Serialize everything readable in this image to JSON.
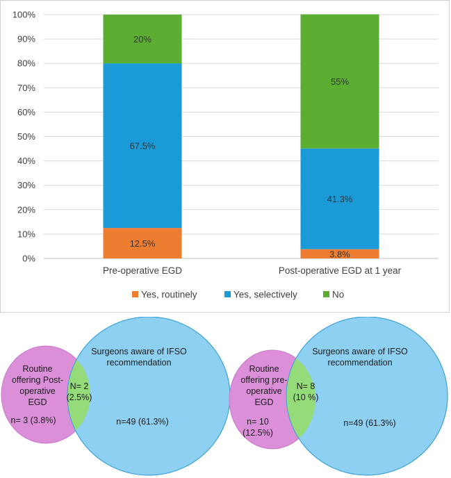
{
  "chart_data": {
    "type": "bar",
    "stacked": true,
    "categories": [
      "Pre-operative  EGD",
      "Post-operative EGD at 1 year"
    ],
    "series": [
      {
        "name": "Yes, routinely",
        "color": "#ED7D31",
        "values": [
          12.5,
          3.8
        ],
        "labels": [
          "12.5%",
          "3.8%"
        ]
      },
      {
        "name": "Yes, selectively",
        "color": "#1A9AD6",
        "values": [
          67.5,
          41.3
        ],
        "labels": [
          "67.5%",
          "41.3%"
        ]
      },
      {
        "name": "No",
        "color": "#5BAE32",
        "values": [
          20,
          55
        ],
        "labels": [
          "20%",
          "55%"
        ]
      }
    ],
    "ylim": [
      0,
      100
    ],
    "yticks": [
      "0%",
      "10%",
      "20%",
      "30%",
      "40%",
      "50%",
      "60%",
      "70%",
      "80%",
      "90%",
      "100%"
    ],
    "grid": true,
    "legend": "bottom",
    "title": "",
    "xlabel": "",
    "ylabel": ""
  },
  "venn_left": {
    "small_circle_label": [
      "Routine",
      "offering Post-",
      "operative",
      "EGD"
    ],
    "small_count": "n= 3 (3.8%)",
    "overlap": [
      "N= 2",
      "(2.5%)"
    ],
    "large_circle_label": [
      "Surgeons aware of IFSO",
      "recommendation"
    ],
    "large_count": "n=49 (61.3%)",
    "colors": {
      "small": "#DB8FD9",
      "large": "#8ED0F2",
      "overlap": "#95DB7A",
      "stroke": "#3EA3D8"
    }
  },
  "venn_right": {
    "small_circle_label": [
      "Routine",
      "offering pre-",
      "operative",
      "EGD"
    ],
    "small_count": [
      "n= 10",
      "(12.5%)"
    ],
    "overlap": [
      "N= 8",
      "(10 %)"
    ],
    "large_circle_label": [
      "Surgeons aware of IFSO",
      "recommendation"
    ],
    "large_count": "n=49 (61.3%)",
    "colors": {
      "small": "#DB8FD9",
      "large": "#8ED0F2",
      "overlap": "#95DB7A",
      "stroke": "#3EA3D8"
    }
  }
}
